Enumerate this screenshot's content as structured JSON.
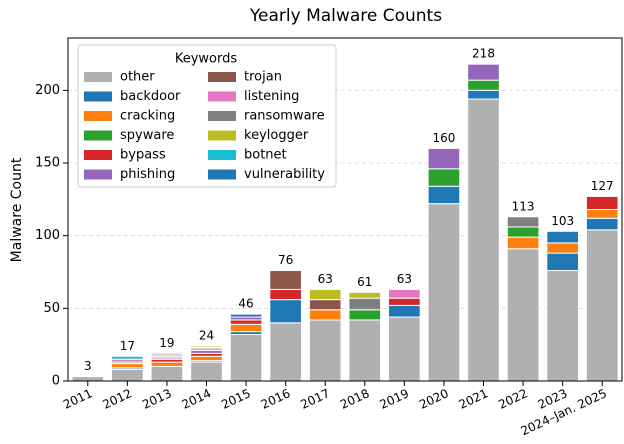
{
  "chart_data": {
    "type": "stacked_bar",
    "title": "Yearly Malware Counts",
    "y_label": "Malware Count",
    "legend_title": "Keywords",
    "legend": "upper left",
    "grid": true,
    "categories": [
      "2011",
      "2012",
      "2013",
      "2014",
      "2015",
      "2016",
      "2017",
      "2018",
      "2019",
      "2020",
      "2021",
      "2022",
      "2023",
      "2024–Jan. 2025"
    ],
    "totals": [
      3,
      17,
      19,
      24,
      46,
      76,
      63,
      61,
      63,
      160,
      218,
      113,
      103,
      127
    ],
    "ylim": [
      0,
      236
    ],
    "yticks": [
      0,
      50,
      100,
      150,
      200
    ],
    "series": [
      {
        "name": "other",
        "color": "#b0b0b0",
        "values": [
          3,
          8,
          10,
          13,
          32,
          40,
          42,
          42,
          44,
          122,
          194,
          91,
          76,
          104
        ]
      },
      {
        "name": "backdoor",
        "color": "#1f77b4",
        "values": [
          0,
          1,
          0,
          1,
          2,
          16,
          0,
          0,
          8,
          12,
          6,
          0,
          12,
          8
        ]
      },
      {
        "name": "cracking",
        "color": "#ff7f0e",
        "values": [
          0,
          3,
          3,
          3,
          5,
          0,
          7,
          0,
          0,
          0,
          0,
          8,
          7,
          6
        ]
      },
      {
        "name": "spyware",
        "color": "#2ca02c",
        "values": [
          0,
          1,
          0,
          0,
          0,
          0,
          0,
          7,
          0,
          12,
          7,
          7,
          0,
          0
        ]
      },
      {
        "name": "bypass",
        "color": "#d62728",
        "values": [
          0,
          0,
          2,
          2,
          3,
          7,
          0,
          0,
          5,
          0,
          0,
          0,
          0,
          9
        ]
      },
      {
        "name": "phishing",
        "color": "#9467bd",
        "values": [
          0,
          0,
          1,
          2,
          2,
          0,
          0,
          0,
          0,
          14,
          11,
          0,
          0,
          0
        ]
      },
      {
        "name": "trojan",
        "color": "#8c564b",
        "values": [
          0,
          0,
          1,
          1,
          0,
          13,
          7,
          0,
          0,
          0,
          0,
          0,
          0,
          0
        ]
      },
      {
        "name": "listening",
        "color": "#e377c2",
        "values": [
          0,
          2,
          1,
          1,
          0,
          0,
          0,
          0,
          6,
          0,
          0,
          0,
          0,
          0
        ]
      },
      {
        "name": "ransomware",
        "color": "#7f7f7f",
        "values": [
          0,
          0,
          1,
          0,
          0,
          0,
          0,
          8,
          0,
          0,
          0,
          7,
          0,
          0
        ]
      },
      {
        "name": "keylogger",
        "color": "#bcbd22",
        "values": [
          0,
          0,
          0,
          1,
          0,
          0,
          7,
          4,
          0,
          0,
          0,
          0,
          0,
          0
        ]
      },
      {
        "name": "botnet",
        "color": "#17becf",
        "values": [
          0,
          2,
          0,
          0,
          0,
          0,
          0,
          0,
          0,
          0,
          0,
          0,
          0,
          0
        ]
      },
      {
        "name": "vulnerability",
        "color": "#1f77b4",
        "values": [
          0,
          0,
          0,
          0,
          2,
          0,
          0,
          0,
          0,
          0,
          0,
          0,
          8,
          0
        ]
      }
    ]
  }
}
